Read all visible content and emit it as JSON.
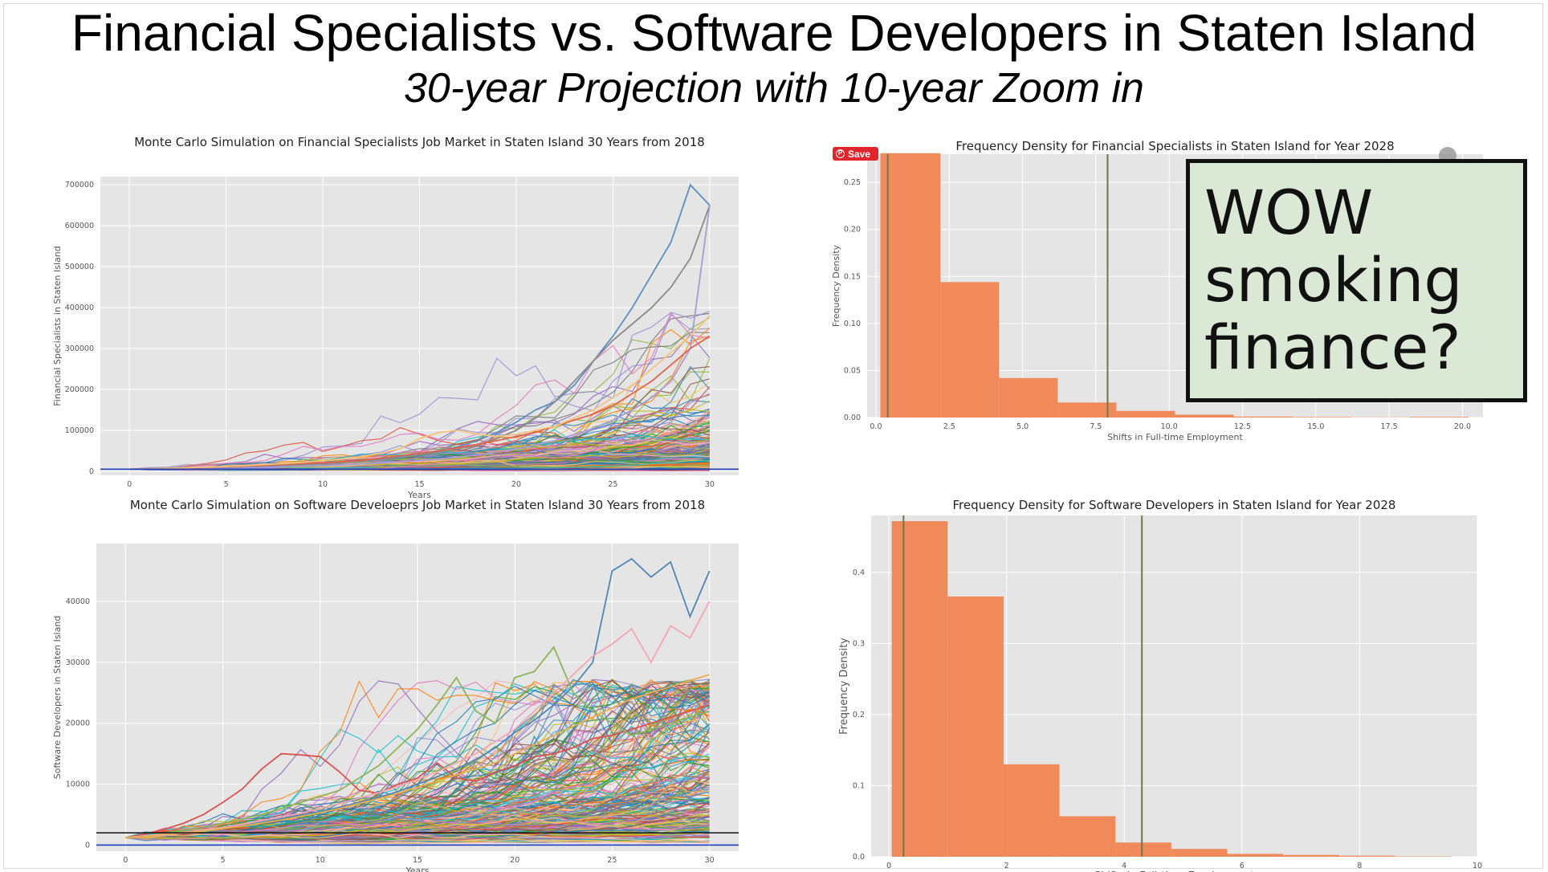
{
  "slide": {
    "title": "Financial Specialists vs. Software Developers in Staten Island",
    "subtitle": "30-year Projection with 10-year Zoom in"
  },
  "overlay": {
    "save_label": "Save",
    "callout_lines": [
      "WOW",
      "smoking",
      "finance?"
    ]
  },
  "chart_data": [
    {
      "type": "line",
      "title": "Monte Carlo Simulation on Financial Specialists Job Market in Staten Island 30 Years from 2018",
      "xlabel": "Years",
      "ylabel": "Financial Specialists in Staten Island",
      "xlim": [
        -1.5,
        31.5
      ],
      "ylim": [
        -10000,
        720000
      ],
      "xticks": [
        0,
        5,
        10,
        15,
        20,
        25,
        30
      ],
      "yticks": [
        0,
        100000,
        200000,
        300000,
        400000,
        500000,
        600000,
        700000
      ],
      "grid": true,
      "reference_line": {
        "y": 5000,
        "color": "#1f3fbf"
      },
      "start_value": 5000,
      "series_shown": 250,
      "highlight_series": [
        {
          "color": "#5b8fc1",
          "values": [
            5000,
            5200,
            6000,
            6500,
            8000,
            9000,
            11000,
            12500,
            15000,
            16500,
            20000,
            22000,
            26000,
            30000,
            36000,
            42000,
            50000,
            60000,
            75000,
            95000,
            120000,
            150000,
            170000,
            210000,
            270000,
            330000,
            400000,
            480000,
            560000,
            700000,
            650000
          ]
        },
        {
          "color": "#8a8a8a",
          "values": [
            5000,
            5400,
            6200,
            7000,
            8500,
            9500,
            10500,
            12000,
            14000,
            16000,
            18000,
            21000,
            24000,
            28000,
            33000,
            40000,
            46000,
            55000,
            64000,
            80000,
            100000,
            130000,
            170000,
            220000,
            270000,
            320000,
            360000,
            400000,
            450000,
            520000,
            650000
          ]
        },
        {
          "color": "#a89bd6",
          "values": [
            5000,
            5100,
            5500,
            6000,
            6800,
            7500,
            8500,
            9500,
            11000,
            12500,
            14000,
            16000,
            18000,
            20000,
            23000,
            26000,
            30000,
            35000,
            40000,
            47000,
            55000,
            65000,
            75000,
            90000,
            105000,
            125000,
            150000,
            180000,
            220000,
            300000,
            650000
          ]
        },
        {
          "color": "#e2634a",
          "values": [
            5000,
            5600,
            6800,
            8000,
            9500,
            11000,
            13000,
            15000,
            17000,
            19000,
            21000,
            23000,
            27000,
            32000,
            38000,
            44000,
            50000,
            58000,
            66000,
            75000,
            85000,
            95000,
            110000,
            125000,
            140000,
            160000,
            190000,
            220000,
            260000,
            300000,
            330000
          ]
        },
        {
          "color": "#f5c27a",
          "values": [
            5000,
            5800,
            7000,
            8500,
            10000,
            12000,
            14000,
            16500,
            19000,
            22000,
            26000,
            30000,
            36000,
            44000,
            55000,
            80000,
            95000,
            100000,
            90000,
            85000,
            90000,
            100000,
            110000,
            130000,
            150000,
            180000,
            210000,
            250000,
            290000,
            330000,
            380000
          ]
        }
      ]
    },
    {
      "type": "bar",
      "title": "Frequency Density for Financial Specialists in Staten Island for Year 2028",
      "xlabel": "Shifts in Full-time Employment",
      "ylabel": "Frequency Density",
      "xlim": [
        -0.3,
        20.7
      ],
      "ylim": [
        0,
        0.28
      ],
      "xticks": [
        0.0,
        2.5,
        5.0,
        7.5,
        10.0,
        12.5,
        15.0,
        17.5,
        20.0
      ],
      "yticks": [
        0.0,
        0.05,
        0.1,
        0.15,
        0.2,
        0.25
      ],
      "grid": true,
      "bins": [
        {
          "x0": 0.15,
          "x1": 2.2,
          "y": 0.281
        },
        {
          "x0": 2.2,
          "x1": 4.2,
          "y": 0.144
        },
        {
          "x0": 4.2,
          "x1": 6.2,
          "y": 0.042
        },
        {
          "x0": 6.2,
          "x1": 8.2,
          "y": 0.016
        },
        {
          "x0": 8.2,
          "x1": 10.2,
          "y": 0.007
        },
        {
          "x0": 10.2,
          "x1": 12.2,
          "y": 0.003
        },
        {
          "x0": 12.2,
          "x1": 14.2,
          "y": 0.001
        },
        {
          "x0": 14.2,
          "x1": 16.2,
          "y": 0.0005
        },
        {
          "x0": 16.2,
          "x1": 18.2,
          "y": 0.0002
        },
        {
          "x0": 18.2,
          "x1": 20.2,
          "y": 0.0006
        }
      ],
      "vlines": [
        0.4,
        7.9
      ],
      "bar_color": "#f08a5a",
      "vline_color": "#6b7a4a"
    },
    {
      "type": "line",
      "title": "Monte Carlo Simulation on Software Develoeprs Job Market in Staten Island 30 Years from 2018",
      "xlabel": "Years",
      "ylabel": "Software Developers in Staten Island",
      "xlim": [
        -1.5,
        31.5
      ],
      "ylim": [
        -1000,
        49500
      ],
      "xticks": [
        0,
        5,
        10,
        15,
        20,
        25,
        30
      ],
      "yticks": [
        0,
        10000,
        20000,
        30000,
        40000
      ],
      "grid": true,
      "reference_lines": [
        {
          "y": 2000,
          "color": "#111111"
        },
        {
          "y": 0,
          "color": "#1f3fbf"
        }
      ],
      "start_value": 1200,
      "series_shown": 250,
      "highlight_series": [
        {
          "color": "#4f86b8",
          "values": [
            1200,
            1400,
            1700,
            2000,
            2400,
            2800,
            3300,
            3800,
            4300,
            4900,
            5500,
            6200,
            7000,
            7800,
            8800,
            10000,
            11200,
            12500,
            14000,
            16000,
            18500,
            20500,
            23000,
            26000,
            30000,
            45000,
            47000,
            44000,
            46500,
            37500,
            45000
          ]
        },
        {
          "color": "#d9534f",
          "values": [
            1200,
            1800,
            2600,
            3600,
            5000,
            7000,
            9200,
            12500,
            15000,
            14800,
            14500,
            12000,
            9000,
            8500,
            10000,
            11000,
            13500,
            11000,
            10500,
            12000,
            13000,
            14500,
            15000,
            16000,
            17500,
            18000,
            19000,
            20000,
            21000,
            22000,
            23000
          ]
        },
        {
          "color": "#8cb45a",
          "values": [
            1200,
            1500,
            1900,
            2400,
            3000,
            3600,
            4300,
            5000,
            6000,
            7000,
            8000,
            9000,
            11000,
            13000,
            16000,
            19000,
            23000,
            27500,
            22000,
            20000,
            27500,
            28500,
            32500,
            25000,
            22000,
            20000,
            18000,
            19000,
            20000,
            21000,
            22000
          ]
        },
        {
          "color": "#f4a6b0",
          "values": [
            1200,
            1500,
            1800,
            2100,
            2500,
            2900,
            3400,
            4000,
            4600,
            5200,
            6000,
            6800,
            7700,
            8600,
            9600,
            10800,
            12000,
            13500,
            15000,
            17000,
            19000,
            22000,
            25000,
            28000,
            31000,
            33000,
            35500,
            30000,
            36000,
            34000,
            40000
          ]
        },
        {
          "color": "#e8b04a",
          "values": [
            1200,
            1400,
            1700,
            2000,
            2300,
            2700,
            3100,
            3600,
            4100,
            4700,
            5300,
            6000,
            6800,
            7600,
            8500,
            9500,
            10500,
            11500,
            12500,
            13500,
            15000,
            16500,
            18000,
            19500,
            21000,
            22500,
            24000,
            25000,
            26000,
            27000,
            28000
          ]
        }
      ]
    },
    {
      "type": "bar",
      "title": "Frequency Density for Software Developers in Staten Island for Year 2028",
      "xlabel": "Shifts in Full-time Employment",
      "ylabel": "Frequency Density",
      "xlim": [
        -0.3,
        10.0
      ],
      "ylim": [
        0,
        0.48
      ],
      "xticks": [
        0,
        2,
        4,
        6,
        8,
        10
      ],
      "yticks": [
        0.0,
        0.1,
        0.2,
        0.3,
        0.4
      ],
      "grid": true,
      "bins": [
        {
          "x0": 0.05,
          "x1": 1.0,
          "y": 0.472
        },
        {
          "x0": 1.0,
          "x1": 1.95,
          "y": 0.366
        },
        {
          "x0": 1.95,
          "x1": 2.9,
          "y": 0.13
        },
        {
          "x0": 2.9,
          "x1": 3.85,
          "y": 0.057
        },
        {
          "x0": 3.85,
          "x1": 4.8,
          "y": 0.02
        },
        {
          "x0": 4.8,
          "x1": 5.75,
          "y": 0.011
        },
        {
          "x0": 5.75,
          "x1": 6.7,
          "y": 0.004
        },
        {
          "x0": 6.7,
          "x1": 7.65,
          "y": 0.0025
        },
        {
          "x0": 7.65,
          "x1": 8.6,
          "y": 0.0015
        },
        {
          "x0": 8.6,
          "x1": 9.55,
          "y": 0.0005
        }
      ],
      "vlines": [
        0.25,
        4.3
      ],
      "bar_color": "#f08a5a",
      "vline_color": "#6b7a4a"
    }
  ]
}
